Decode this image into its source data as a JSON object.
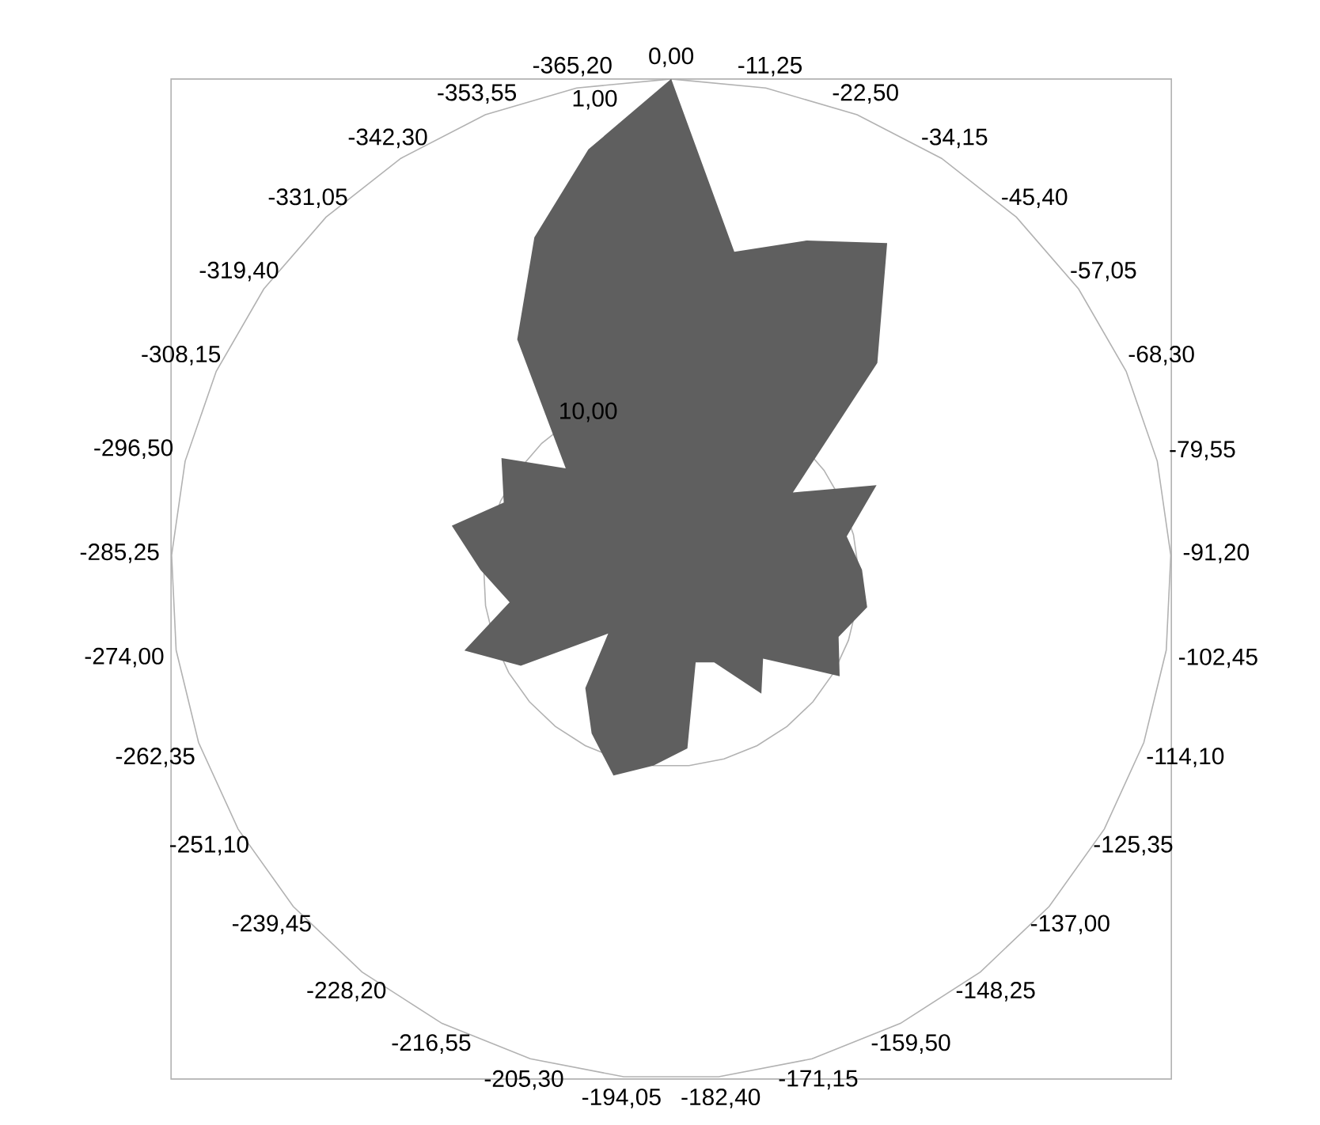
{
  "chart_data": {
    "type": "radar",
    "categories": [
      "0,00",
      "-11,25",
      "-22,50",
      "-34,15",
      "-45,40",
      "-57,05",
      "-68,30",
      "-79,55",
      "-91,20",
      "-102,45",
      "-114,10",
      "-125,35",
      "-137,00",
      "-148,25",
      "-159,50",
      "-171,15",
      "-182,40",
      "-194,05",
      "-205,30",
      "-216,55",
      "-228,20",
      "-239,45",
      "-251,10",
      "-262,35",
      "-274,00",
      "-285,25",
      "-296,50",
      "-308,15",
      "-319,40",
      "-331,05",
      "-342,30",
      "-353,55",
      "-365,20"
    ],
    "series": [
      {
        "color": "#5f5f5f",
        "values": [
          1,
          5.8,
          4.9,
          3.9,
          6.8,
          11.1,
          8.9,
          10.2,
          9.9,
          9.7,
          10.3,
          9.8,
          11.9,
          11.2,
          12.7,
          12.9,
          10.5,
          10.0,
          9.5,
          10.4,
          11.4,
          13.0,
          10.4,
          9.1,
          10.7,
          9.9,
          8.9,
          10.1,
          9.4,
          11.0,
          7.2,
          4.8,
          2.8
        ]
      }
    ],
    "ylim": [
      15.4,
      1
    ],
    "yticks": [
      {
        "value": 1,
        "label": "1,00"
      },
      {
        "value": 10,
        "label": "10,00"
      }
    ],
    "grid": true
  }
}
